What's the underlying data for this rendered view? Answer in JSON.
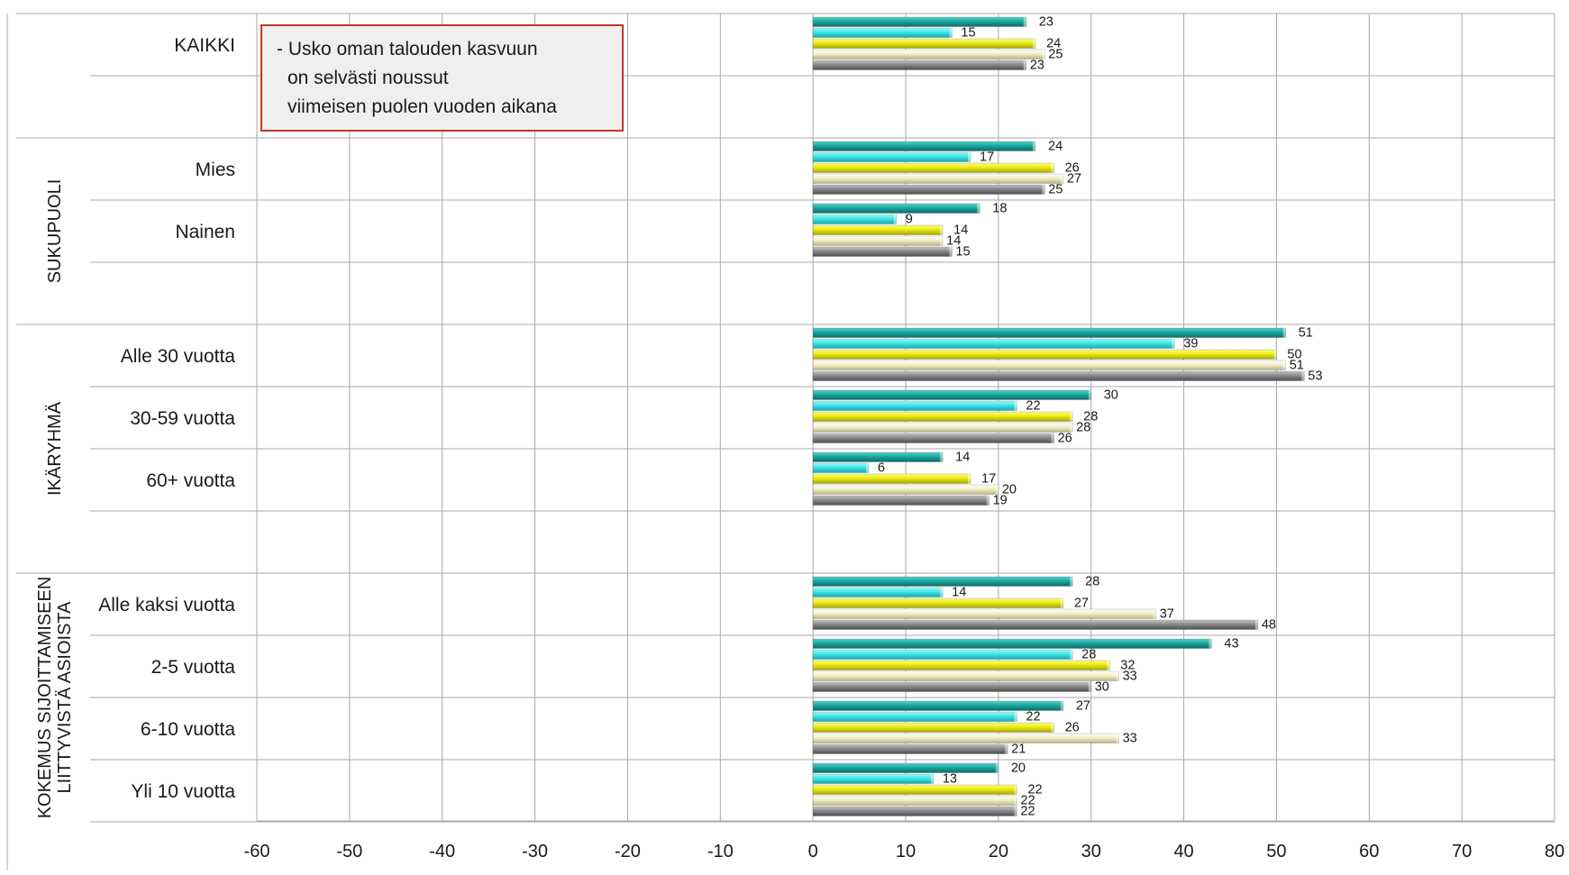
{
  "chart_data": {
    "type": "bar",
    "orientation": "horizontal",
    "annotation": [
      "- Usko oman talouden kasvuun",
      "on selvästi noussut",
      "viimeisen  puolen vuoden aikana"
    ],
    "xlim": [
      -60,
      80
    ],
    "x_ticks": [
      "-60",
      "-50",
      "-40",
      "-30",
      "-20",
      "-10",
      "0",
      "10",
      "20",
      "30",
      "40",
      "50",
      "60",
      "70",
      "80"
    ],
    "grid": true,
    "series_colors": [
      "#1aa7a0",
      "#3ee6e6",
      "#ecec12",
      "#f2f0c4",
      "#8a8a8a"
    ],
    "groups": [
      {
        "label": "",
        "categories": [
          {
            "label": "KAIKKI",
            "values": [
              23,
              15,
              24,
              25,
              23
            ]
          }
        ]
      },
      {
        "label": "SUKUPUOLI",
        "categories": [
          {
            "label": "Mies",
            "values": [
              24,
              17,
              26,
              27,
              25
            ]
          },
          {
            "label": "Nainen",
            "values": [
              18,
              9,
              14,
              14,
              15
            ]
          }
        ]
      },
      {
        "label": "IKÄRYHMÄ",
        "categories": [
          {
            "label": "Alle 30 vuotta",
            "values": [
              51,
              39,
              50,
              51,
              53
            ]
          },
          {
            "label": "30-59 vuotta",
            "values": [
              30,
              22,
              28,
              28,
              26
            ]
          },
          {
            "label": "60+ vuotta",
            "values": [
              14,
              6,
              17,
              20,
              19
            ]
          }
        ]
      },
      {
        "label": "KOKEMUS SIJOITTAMISEEN LIITTYVISTÄ ASIOISTA",
        "label_lines": [
          "KOKEMUS SIJOITTAMISEEN",
          "LIITTYVISTÄ ASIOISTA"
        ],
        "categories": [
          {
            "label": "Alle kaksi vuotta",
            "values": [
              28,
              14,
              27,
              37,
              48
            ]
          },
          {
            "label": "2-5 vuotta",
            "values": [
              43,
              28,
              32,
              33,
              30
            ]
          },
          {
            "label": "6-10 vuotta",
            "values": [
              27,
              22,
              26,
              33,
              21
            ]
          },
          {
            "label": "Yli 10 vuotta",
            "values": [
              20,
              13,
              22,
              22,
              22
            ]
          }
        ]
      }
    ]
  }
}
